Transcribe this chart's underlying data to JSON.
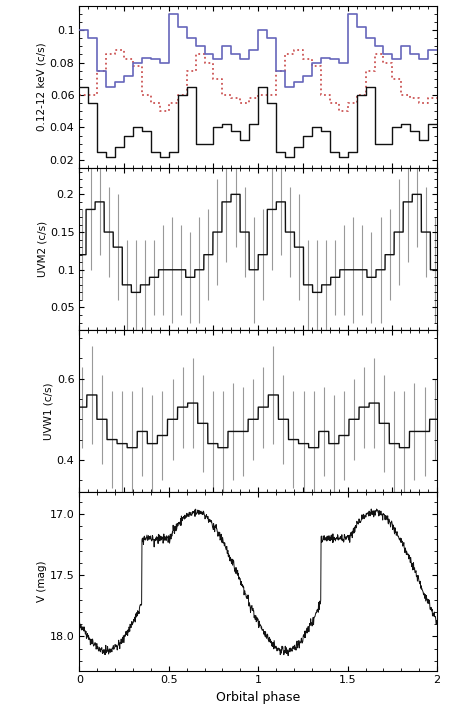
{
  "panel1_ylabel": "0.12-12 keV (c/s)",
  "panel2_ylabel": "UVM2 (c/s)",
  "panel3_ylabel": "UVW1 (c/s)",
  "panel4_ylabel": "V (mag)",
  "xlabel": "Orbital phase",
  "panel1_ylim": [
    0.015,
    0.115
  ],
  "panel1_yticks": [
    0.02,
    0.04,
    0.06,
    0.08,
    0.1
  ],
  "panel2_ylim": [
    0.02,
    0.235
  ],
  "panel2_yticks": [
    0.05,
    0.1,
    0.15,
    0.2
  ],
  "panel3_ylim": [
    0.32,
    0.72
  ],
  "panel3_yticks": [
    0.4,
    0.6
  ],
  "panel4_ylim": [
    18.28,
    16.82
  ],
  "panel4_yticks": [
    17.0,
    17.5,
    18.0
  ],
  "xlim": [
    0,
    2
  ],
  "xticks": [
    0,
    0.5,
    1.0,
    1.5,
    2.0
  ],
  "blue_color": "#6666bb",
  "red_dotted_color": "#cc5555",
  "black_color": "#111111",
  "gray_color": "#999999"
}
